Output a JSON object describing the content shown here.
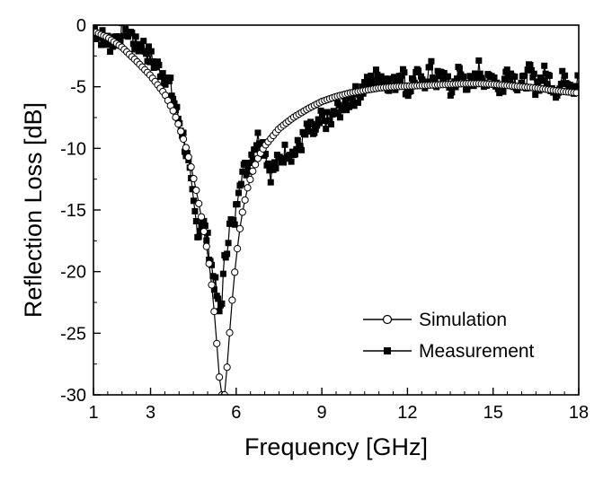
{
  "chart_data": {
    "type": "scatter",
    "title": "",
    "xlabel": "Frequency  [GHz]",
    "ylabel": "Reflection Loss [dB]",
    "xlim": [
      1,
      18
    ],
    "ylim": [
      -30,
      0
    ],
    "xticks": [
      1,
      3,
      6,
      9,
      12,
      15,
      18
    ],
    "yticks": [
      0,
      -5,
      -10,
      -15,
      -20,
      -25,
      -30
    ],
    "grid": false,
    "legend": {
      "placement": "bottom-right"
    },
    "series": [
      {
        "name": "Simulation",
        "marker": "open-circle",
        "color": "#000000",
        "x": [
          1.0,
          1.5,
          2.0,
          2.5,
          3.0,
          3.5,
          3.8,
          4.0,
          4.2,
          4.4,
          4.6,
          4.8,
          5.0,
          5.1,
          5.2,
          5.3,
          5.4,
          5.5,
          5.6,
          5.7,
          5.8,
          5.9,
          6.0,
          6.1,
          6.2,
          6.4,
          6.6,
          6.8,
          7.0,
          7.5,
          8.0,
          8.5,
          9.0,
          9.5,
          10.0,
          10.5,
          11.0,
          11.5,
          12.0,
          12.5,
          13.0,
          13.5,
          14.0,
          14.5,
          15.0,
          15.5,
          16.0,
          16.5,
          17.0,
          17.5,
          18.0
        ],
        "y": [
          -0.5,
          -1.0,
          -1.8,
          -2.9,
          -4.1,
          -5.6,
          -7.0,
          -8.2,
          -9.6,
          -11.3,
          -13.4,
          -15.8,
          -18.5,
          -20.2,
          -22.4,
          -25.2,
          -28.4,
          -30.0,
          -30.0,
          -27.2,
          -24.0,
          -21.2,
          -18.9,
          -17.0,
          -15.4,
          -13.2,
          -11.7,
          -10.6,
          -9.8,
          -8.4,
          -7.5,
          -6.8,
          -6.2,
          -5.8,
          -5.5,
          -5.3,
          -5.1,
          -5.0,
          -4.95,
          -4.9,
          -4.85,
          -4.8,
          -4.75,
          -4.75,
          -4.8,
          -4.9,
          -5.0,
          -5.1,
          -5.25,
          -5.4,
          -5.5
        ]
      },
      {
        "name": "Measurement",
        "marker": "filled-square",
        "color": "#000000",
        "x": [
          1.0,
          1.3,
          1.6,
          1.9,
          2.1,
          2.3,
          2.5,
          2.7,
          2.9,
          3.1,
          3.3,
          3.5,
          3.7,
          3.9,
          4.1,
          4.3,
          4.5,
          4.6,
          4.7,
          4.8,
          4.9,
          5.0,
          5.1,
          5.2,
          5.3,
          5.4,
          5.5,
          5.6,
          5.7,
          5.8,
          5.9,
          6.0,
          6.1,
          6.2,
          6.4,
          6.6,
          6.8,
          7.0,
          7.2,
          7.5,
          7.8,
          8.0,
          8.3,
          8.5,
          8.8,
          9.0,
          9.3,
          9.5,
          9.8,
          10.0,
          10.3,
          10.5,
          10.8,
          11.0,
          11.3,
          11.5,
          11.8,
          12.0,
          12.3,
          12.5,
          12.8,
          13.0,
          13.3,
          13.5,
          13.8,
          14.0,
          14.3,
          14.5,
          14.8,
          15.0,
          15.3,
          15.5,
          15.8,
          16.0,
          16.3,
          16.5,
          16.8,
          17.0,
          17.3,
          17.5,
          17.8,
          18.0
        ],
        "y": [
          -0.3,
          -1.0,
          -1.5,
          -0.8,
          -0.2,
          -0.6,
          -1.8,
          -1.5,
          -2.3,
          -3.0,
          -3.5,
          -4.0,
          -5.0,
          -7.0,
          -8.5,
          -11.0,
          -14.5,
          -16.0,
          -17.0,
          -15.5,
          -16.5,
          -17.5,
          -19.0,
          -20.5,
          -21.5,
          -23.5,
          -22.0,
          -19.0,
          -17.5,
          -16.0,
          -16.5,
          -15.0,
          -12.5,
          -12.0,
          -11.5,
          -10.0,
          -9.0,
          -10.0,
          -12.0,
          -11.0,
          -10.0,
          -10.5,
          -9.5,
          -8.5,
          -8.8,
          -7.5,
          -8.0,
          -7.0,
          -6.5,
          -6.0,
          -5.5,
          -5.0,
          -4.5,
          -4.0,
          -4.5,
          -5.0,
          -3.5,
          -5.5,
          -4.0,
          -5.0,
          -3.5,
          -4.5,
          -4.0,
          -5.5,
          -3.8,
          -4.5,
          -5.0,
          -3.5,
          -4.8,
          -4.0,
          -5.5,
          -3.5,
          -4.5,
          -5.0,
          -3.8,
          -5.0,
          -4.0,
          -4.5,
          -5.5,
          -3.8,
          -5.0,
          -4.5
        ]
      }
    ]
  }
}
